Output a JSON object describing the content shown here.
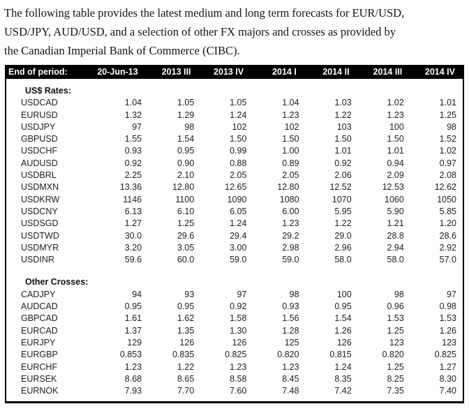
{
  "intro": {
    "lines": [
      "The following table provides the latest medium and long term forecasts for EUR/USD,",
      "USD/JPY, AUD/USD, and a selection of other FX majors and crosses as provided by",
      "the Canadian Imperial Bank of Commerce (CIBC)."
    ]
  },
  "table": {
    "header": [
      "End of period:",
      "20-Jun-13",
      "2013 III",
      "2013 IV",
      "2014 I",
      "2014 II",
      "2014 III",
      "2014 IV"
    ],
    "colors": {
      "header_bg": "#000000",
      "header_text": "#ffffff",
      "border": "#000000"
    },
    "sections": [
      {
        "label": "US$ Rates:",
        "rows": [
          {
            "pair": "USDCAD",
            "values": [
              "1.04",
              "1.05",
              "1.05",
              "1.04",
              "1.03",
              "1.02",
              "1.01"
            ]
          },
          {
            "pair": "EURUSD",
            "values": [
              "1.32",
              "1.29",
              "1.24",
              "1.23",
              "1.22",
              "1.23",
              "1.25"
            ]
          },
          {
            "pair": "USDJPY",
            "values": [
              "97",
              "98",
              "102",
              "102",
              "103",
              "100",
              "98"
            ]
          },
          {
            "pair": "GBPUSD",
            "values": [
              "1.55",
              "1.54",
              "1.50",
              "1.50",
              "1.50",
              "1.50",
              "1.52"
            ]
          },
          {
            "pair": "USDCHF",
            "values": [
              "0.93",
              "0.95",
              "0.99",
              "1.00",
              "1.01",
              "1.01",
              "1.02"
            ]
          },
          {
            "pair": "AUDUSD",
            "values": [
              "0.92",
              "0.90",
              "0.88",
              "0.89",
              "0.92",
              "0.94",
              "0.97"
            ]
          },
          {
            "pair": "USDBRL",
            "values": [
              "2.25",
              "2.10",
              "2.05",
              "2.05",
              "2.06",
              "2.09",
              "2.08"
            ]
          },
          {
            "pair": "USDMXN",
            "values": [
              "13.36",
              "12.80",
              "12.65",
              "12.80",
              "12.52",
              "12.53",
              "12.62"
            ]
          },
          {
            "pair": "USDKRW",
            "values": [
              "1146",
              "1100",
              "1090",
              "1080",
              "1070",
              "1060",
              "1050"
            ]
          },
          {
            "pair": "USDCNY",
            "values": [
              "6.13",
              "6.10",
              "6.05",
              "6.00",
              "5.95",
              "5.90",
              "5.85"
            ]
          },
          {
            "pair": "USDSGD",
            "values": [
              "1.27",
              "1.25",
              "1.24",
              "1.23",
              "1.22",
              "1.21",
              "1.20"
            ]
          },
          {
            "pair": "USDTWD",
            "values": [
              "30.0",
              "29.6",
              "29.4",
              "29.2",
              "29.0",
              "28.8",
              "28.6"
            ]
          },
          {
            "pair": "USDMYR",
            "values": [
              "3.20",
              "3.05",
              "3.00",
              "2.98",
              "2.96",
              "2.94",
              "2.92"
            ]
          },
          {
            "pair": "USDINR",
            "values": [
              "59.6",
              "60.0",
              "59.0",
              "59.0",
              "58.0",
              "58.0",
              "57.0"
            ]
          }
        ]
      },
      {
        "label": "Other Crosses:",
        "rows": [
          {
            "pair": "CADJPY",
            "values": [
              "94",
              "93",
              "97",
              "98",
              "100",
              "98",
              "97"
            ]
          },
          {
            "pair": "AUDCAD",
            "values": [
              "0.95",
              "0.95",
              "0.92",
              "0.93",
              "0.95",
              "0.96",
              "0.98"
            ]
          },
          {
            "pair": "GBPCAD",
            "values": [
              "1.61",
              "1.62",
              "1.58",
              "1.56",
              "1.54",
              "1.53",
              "1.53"
            ]
          },
          {
            "pair": "EURCAD",
            "values": [
              "1.37",
              "1.35",
              "1.30",
              "1.28",
              "1.26",
              "1.25",
              "1.26"
            ]
          },
          {
            "pair": "EURJPY",
            "values": [
              "129",
              "126",
              "126",
              "125",
              "126",
              "123",
              "123"
            ]
          },
          {
            "pair": "EURGBP",
            "values": [
              "0.853",
              "0.835",
              "0.825",
              "0.820",
              "0.815",
              "0.820",
              "0.825"
            ]
          },
          {
            "pair": "EURCHF",
            "values": [
              "1.23",
              "1.22",
              "1.23",
              "1.23",
              "1.24",
              "1.25",
              "1.27"
            ]
          },
          {
            "pair": "EURSEK",
            "values": [
              "8.68",
              "8.65",
              "8.58",
              "8.45",
              "8.35",
              "8.25",
              "8.30"
            ]
          },
          {
            "pair": "EURNOK",
            "values": [
              "7.93",
              "7.70",
              "7.60",
              "7.48",
              "7.42",
              "7.35",
              "7.40"
            ]
          }
        ]
      }
    ]
  }
}
